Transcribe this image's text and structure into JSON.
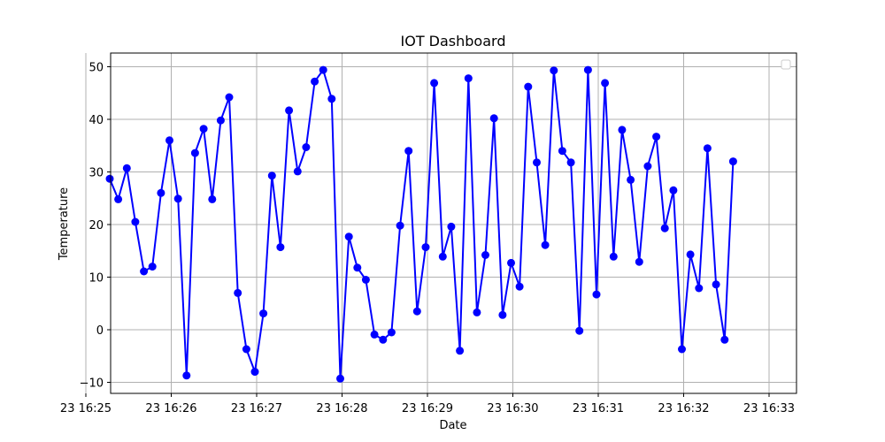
{
  "chart_data": {
    "type": "line",
    "title": "IOT Dashboard",
    "xlabel": "Date",
    "ylabel": "Temperature",
    "grid": true,
    "legend": "top-right",
    "colors": {
      "line": "#0000ff",
      "marker": "#0000ff",
      "grid": "#b0b0b0"
    },
    "x_ticks": [
      "23 16:25",
      "23 16:26",
      "23 16:27",
      "23 16:28",
      "23 16:29",
      "23 16:30",
      "23 16:31",
      "23 16:32",
      "23 16:33"
    ],
    "y_ticks": [
      "−10",
      "0",
      "10",
      "20",
      "30",
      "40",
      "50"
    ],
    "xlim": [
      "16:25:00",
      "16:33:00"
    ],
    "ylim": [
      -12,
      52.5
    ],
    "series": [
      {
        "x": [
          "16:25:18",
          "16:25:24",
          "16:25:30",
          "16:25:36",
          "16:25:42",
          "16:25:48",
          "16:25:54",
          "16:26:00",
          "16:26:06",
          "16:26:12",
          "16:26:18",
          "16:26:24",
          "16:26:30",
          "16:26:36",
          "16:26:42",
          "16:26:48",
          "16:26:54",
          "16:27:00",
          "16:27:06",
          "16:27:12",
          "16:27:18",
          "16:27:24",
          "16:27:30",
          "16:27:36",
          "16:27:42",
          "16:27:48",
          "16:27:54",
          "16:28:00",
          "16:28:06",
          "16:28:12",
          "16:28:18",
          "16:28:24",
          "16:28:30",
          "16:28:36",
          "16:28:42",
          "16:28:48",
          "16:28:54",
          "16:29:00",
          "16:29:06",
          "16:29:12",
          "16:29:18",
          "16:29:24",
          "16:29:30",
          "16:29:36",
          "16:29:42",
          "16:29:48",
          "16:29:54",
          "16:30:00",
          "16:30:06",
          "16:30:12",
          "16:30:18",
          "16:30:24",
          "16:30:30",
          "16:30:36",
          "16:30:42",
          "16:30:48",
          "16:30:54",
          "16:31:00",
          "16:31:06",
          "16:31:12",
          "16:31:18",
          "16:31:24",
          "16:31:30",
          "16:31:36",
          "16:31:42",
          "16:31:48",
          "16:31:54",
          "16:32:00",
          "16:32:06",
          "16:32:12",
          "16:32:18",
          "16:32:24",
          "16:32:30",
          "16:32:36"
        ],
        "y": [
          28.7,
          24.8,
          30.7,
          20.5,
          11.1,
          12.0,
          26.0,
          36.0,
          24.9,
          -8.7,
          33.6,
          38.2,
          24.8,
          39.8,
          44.2,
          7.0,
          -3.7,
          -8.0,
          3.1,
          29.3,
          15.7,
          41.7,
          30.1,
          34.7,
          47.2,
          49.4,
          43.9,
          -9.3,
          17.7,
          11.8,
          9.5,
          -0.9,
          -1.9,
          -0.5,
          19.8,
          34.0,
          3.5,
          15.7,
          46.9,
          13.9,
          19.6,
          -4.0,
          47.8,
          3.3,
          14.2,
          40.2,
          2.8,
          12.7,
          8.2,
          46.2,
          31.8,
          16.1,
          49.3,
          34.0,
          31.8,
          -0.2,
          49.4,
          6.7,
          46.9,
          13.9,
          38.0,
          28.5,
          12.9,
          31.1,
          36.7,
          19.3,
          26.5,
          -3.7,
          14.3,
          7.9,
          34.5,
          8.6,
          -1.9,
          32.0
        ]
      }
    ]
  }
}
